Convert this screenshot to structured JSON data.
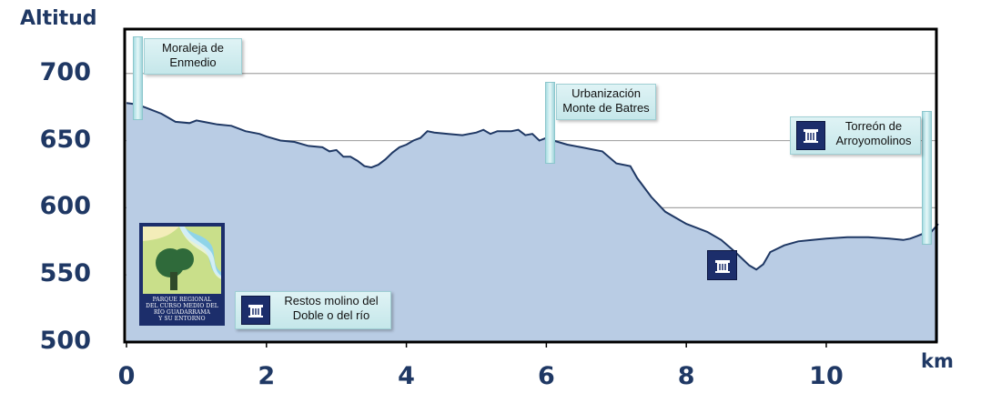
{
  "chart_data": {
    "type": "area",
    "ylabel": "Altitud",
    "xlabel": "km",
    "xlim": [
      0,
      11.6
    ],
    "ylim": [
      500,
      700
    ],
    "yticks": [
      "500",
      "550",
      "600",
      "650",
      "700"
    ],
    "xticks": [
      "0",
      "2",
      "4",
      "6",
      "8",
      "10"
    ],
    "grid": true,
    "fill_color": "#b9cce4",
    "line_color": "#1f3864",
    "series": [
      {
        "x": [
          0,
          0.15,
          0.3,
          0.5,
          0.7,
          0.9,
          1.0,
          1.1,
          1.3,
          1.5,
          1.7,
          1.9,
          2.0,
          2.2,
          2.4,
          2.6,
          2.8,
          2.9,
          3.0,
          3.1,
          3.2,
          3.3,
          3.4,
          3.5,
          3.6,
          3.7,
          3.8,
          3.9,
          4.0,
          4.1,
          4.2,
          4.3,
          4.4,
          4.6,
          4.8,
          5.0,
          5.1,
          5.2,
          5.3,
          5.5,
          5.6,
          5.7,
          5.8,
          5.9,
          6.0,
          6.1,
          6.3,
          6.5,
          6.8,
          7.0,
          7.2,
          7.3,
          7.5,
          7.7,
          8.0,
          8.3,
          8.5,
          8.7,
          8.8,
          8.9,
          9.0,
          9.1,
          9.2,
          9.4,
          9.6,
          9.8,
          10.0,
          10.3,
          10.6,
          10.9,
          11.1,
          11.2,
          11.3,
          11.4,
          11.5,
          11.6
        ],
        "values": [
          678,
          677,
          674,
          670,
          664,
          663,
          665,
          664,
          662,
          661,
          657,
          655,
          653,
          650,
          649,
          646,
          645,
          642,
          643,
          638,
          638,
          635,
          631,
          630,
          632,
          636,
          641,
          645,
          647,
          650,
          652,
          657,
          656,
          655,
          654,
          656,
          658,
          655,
          657,
          657,
          658,
          654,
          655,
          650,
          652,
          650,
          647,
          645,
          642,
          633,
          631,
          622,
          608,
          597,
          588,
          582,
          576,
          567,
          562,
          557,
          554,
          558,
          567,
          572,
          575,
          576,
          577,
          578,
          578,
          577,
          576,
          577,
          579,
          581,
          582,
          588
        ]
      }
    ],
    "annotations": [
      {
        "lines": [
          "Moraleja de",
          "Enmedio"
        ],
        "x": 0.15,
        "icon": ""
      },
      {
        "lines": [
          "Urbanización",
          "Monte de Batres"
        ],
        "x": 6.1,
        "icon": ""
      },
      {
        "lines": [
          "Torreón de",
          "Arroyomolinos"
        ],
        "x": 11.4,
        "icon": "tower-icon"
      },
      {
        "lines": [
          "Restos molino del",
          "Doble o del río"
        ],
        "x": null,
        "icon": "ruins-icon"
      }
    ]
  },
  "logo": {
    "lines": [
      "PARQUE REGIONAL",
      "DEL CURSO MEDIO DEL",
      "RÍO GUADARRAMA",
      "Y SU ENTORNO"
    ]
  },
  "icons": [
    "tower-icon",
    "ruins-icon",
    "park-logo"
  ]
}
